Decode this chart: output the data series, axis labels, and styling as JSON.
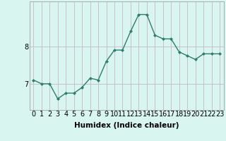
{
  "x": [
    0,
    1,
    2,
    3,
    4,
    5,
    6,
    7,
    8,
    9,
    10,
    11,
    12,
    13,
    14,
    15,
    16,
    17,
    18,
    19,
    20,
    21,
    22,
    23
  ],
  "y": [
    7.1,
    7.0,
    7.0,
    6.6,
    6.75,
    6.75,
    6.9,
    7.15,
    7.1,
    7.6,
    7.9,
    7.9,
    8.4,
    8.85,
    8.85,
    8.3,
    8.2,
    8.2,
    7.85,
    7.75,
    7.65,
    7.8,
    7.8,
    7.8
  ],
  "line_color": "#2e7d6e",
  "marker": "D",
  "marker_size": 2.0,
  "background_color": "#d8f5f0",
  "grid_color": "#c8b8c8",
  "xlabel": "Humidex (Indice chaleur)",
  "xlabel_fontsize": 7.5,
  "ylabel_ticks": [
    7,
    8
  ],
  "xlim": [
    -0.5,
    23.5
  ],
  "ylim": [
    6.3,
    9.2
  ],
  "tick_fontsize": 7,
  "line_width": 1.0
}
